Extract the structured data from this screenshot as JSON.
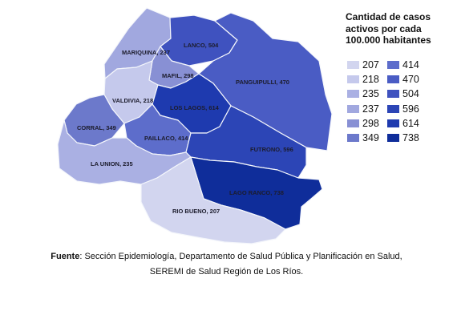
{
  "legend": {
    "title_line1": "Cantidad de casos",
    "title_line2": "activos por cada",
    "title_line3": "100.000 habitantes",
    "items": [
      {
        "value": "207",
        "color": "#d2d5ef"
      },
      {
        "value": "414",
        "color": "#5d6dcb"
      },
      {
        "value": "218",
        "color": "#c5c9ec"
      },
      {
        "value": "470",
        "color": "#4a5cc4"
      },
      {
        "value": "235",
        "color": "#aab0e3"
      },
      {
        "value": "504",
        "color": "#3f52bf"
      },
      {
        "value": "237",
        "color": "#a1a8df"
      },
      {
        "value": "596",
        "color": "#2c45b6"
      },
      {
        "value": "298",
        "color": "#8890d4"
      },
      {
        "value": "614",
        "color": "#1e3aaf"
      },
      {
        "value": "349",
        "color": "#6c79cb"
      },
      {
        "value": "738",
        "color": "#0f2d9a"
      }
    ]
  },
  "comunas": [
    {
      "name": "MARIQUINA",
      "value": 237,
      "label": "MARIQUINA, 237",
      "color": "#a1a8df"
    },
    {
      "name": "LANCO",
      "value": 504,
      "label": "LANCO, 504",
      "color": "#3f52bf"
    },
    {
      "name": "MAFIL",
      "value": 298,
      "label": "MAFIL, 298",
      "color": "#8890d4"
    },
    {
      "name": "PANGUIPULLI",
      "value": 470,
      "label": "PANGUIPULLI, 470",
      "color": "#4a5cc4"
    },
    {
      "name": "VALDIVIA",
      "value": 218,
      "label": "VALDIVIA, 218",
      "color": "#c5c9ec"
    },
    {
      "name": "LOS LAGOS",
      "value": 614,
      "label": "LOS LAGOS, 614",
      "color": "#1e3aaf"
    },
    {
      "name": "CORRAL",
      "value": 349,
      "label": "CORRAL, 349",
      "color": "#6c79cb"
    },
    {
      "name": "PAILLACO",
      "value": 414,
      "label": "PAILLACO, 414",
      "color": "#5d6dcb"
    },
    {
      "name": "FUTRONO",
      "value": 596,
      "label": "FUTRONO, 596",
      "color": "#2c45b6"
    },
    {
      "name": "LA UNION",
      "value": 235,
      "label": "LA UNION, 235",
      "color": "#aab0e3"
    },
    {
      "name": "LAGO RANCO",
      "value": 738,
      "label": "LAGO RANCO, 738",
      "color": "#0f2d9a"
    },
    {
      "name": "RIO BUENO",
      "value": 207,
      "label": "RIO BUENO, 207",
      "color": "#d2d5ef"
    }
  ],
  "source": {
    "label": "Fuente",
    "line1": ": Sección Epidemiología, Departamento de Salud Pública y Planificación en Salud,",
    "line2": "SEREMI de Salud Región de Los Ríos."
  }
}
